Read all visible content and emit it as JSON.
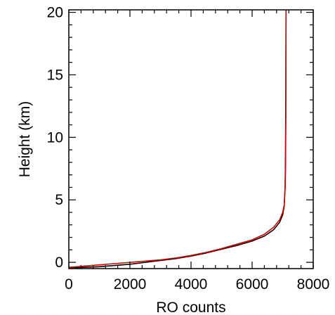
{
  "chart_data": {
    "type": "line",
    "title": "",
    "xlabel": "RO counts",
    "ylabel": "Height (km)",
    "xlim": [
      0,
      8000
    ],
    "ylim": [
      -0.5,
      20.2
    ],
    "xticks": [
      0,
      2000,
      4000,
      6000,
      8000
    ],
    "yticks": [
      0,
      5,
      10,
      15,
      20
    ],
    "x_minor_step": 400,
    "y_minor_step": 1,
    "grid": false,
    "legend": "none",
    "series": [
      {
        "color": "#000000",
        "points": [
          [
            0,
            -0.45
          ],
          [
            500,
            -0.4
          ],
          [
            1000,
            -0.35
          ],
          [
            1500,
            -0.25
          ],
          [
            2000,
            -0.15
          ],
          [
            2500,
            0.0
          ],
          [
            3000,
            0.15
          ],
          [
            3500,
            0.3
          ],
          [
            4000,
            0.5
          ],
          [
            4500,
            0.75
          ],
          [
            5000,
            1.05
          ],
          [
            5500,
            1.35
          ],
          [
            6000,
            1.7
          ],
          [
            6400,
            2.1
          ],
          [
            6700,
            2.6
          ],
          [
            6900,
            3.2
          ],
          [
            7000,
            3.8
          ],
          [
            7050,
            4.5
          ],
          [
            7080,
            6.0
          ],
          [
            7090,
            8.0
          ],
          [
            7100,
            12.0
          ],
          [
            7110,
            20.2
          ]
        ]
      },
      {
        "color": "#d40000",
        "points": [
          [
            0,
            -0.4
          ],
          [
            500,
            -0.3
          ],
          [
            1000,
            -0.2
          ],
          [
            1500,
            -0.1
          ],
          [
            2000,
            0.0
          ],
          [
            2500,
            0.1
          ],
          [
            3000,
            0.2
          ],
          [
            3500,
            0.35
          ],
          [
            4000,
            0.55
          ],
          [
            4500,
            0.8
          ],
          [
            5000,
            1.1
          ],
          [
            5500,
            1.45
          ],
          [
            6000,
            1.8
          ],
          [
            6400,
            2.25
          ],
          [
            6700,
            2.8
          ],
          [
            6900,
            3.4
          ],
          [
            7000,
            4.0
          ],
          [
            7050,
            4.6
          ],
          [
            7080,
            6.0
          ],
          [
            7095,
            8.0
          ],
          [
            7105,
            12.0
          ],
          [
            7110,
            20.2
          ]
        ]
      }
    ]
  }
}
